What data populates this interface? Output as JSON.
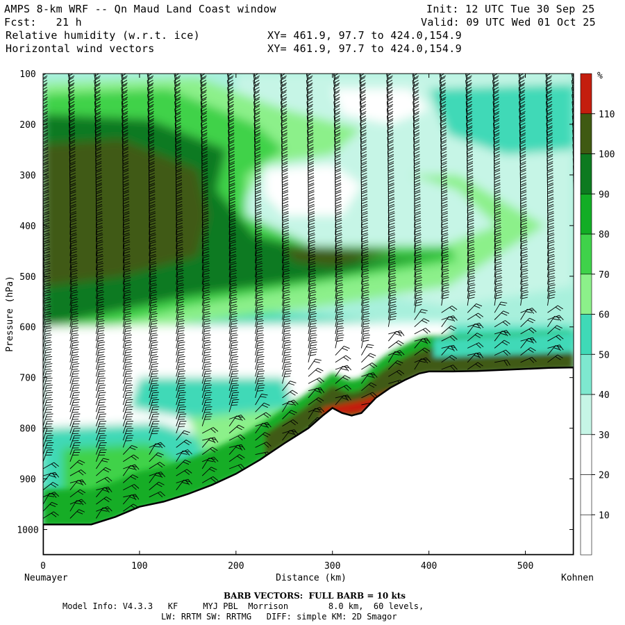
{
  "header": {
    "model_title": "AMPS 8-km WRF -- Qn Maud Land Coast window",
    "init": "Init: 12 UTC Tue 30 Sep 25",
    "forecast": "Fcst:   21 h",
    "valid": "Valid: 09 UTC Wed 01 Oct 25",
    "field1": "Relative humidity (w.r.t. ice)",
    "field1_xy": "XY= 461.9, 97.7 to 424.0,154.9",
    "field2": "Horizontal wind vectors",
    "field2_xy": "XY= 461.9, 97.7 to 424.0,154.9"
  },
  "footer": {
    "barb_note": "BARB VECTORS:  FULL BARB = 10 kts",
    "model_info_1": "Model Info: V4.3.3   KF     MYJ PBL  Morrison        8.0 km,  60 levels,",
    "model_info_2": "LW: RRTM SW: RRTMG   DIFF: simple KM: 2D Smagor"
  },
  "colors": {
    "bands": [
      "#ffffff",
      "#ffffff",
      "#ffffff",
      "#c6f5e6",
      "#7ee8cf",
      "#3fd9b7",
      "#8cf08a",
      "#3fd24a",
      "#12ad25",
      "#0d7a20",
      "#3f5a12",
      "#c41e0e"
    ],
    "terrain_fill": "#ffffff",
    "barb": "#000000"
  },
  "chart_data": {
    "type": "heatmap",
    "title": "Relative humidity (w.r.t. ice)",
    "xlabel": "Distance (km)",
    "ylabel": "Pressure (hPa)",
    "x_range": [
      0,
      550
    ],
    "y_range": [
      100,
      1050
    ],
    "y_axis_inverted": true,
    "x_ticks": [
      "0",
      "100",
      "200",
      "300",
      "400",
      "500"
    ],
    "y_ticks": [
      "100",
      "200",
      "300",
      "400",
      "500",
      "600",
      "700",
      "800",
      "900",
      "1000"
    ],
    "x_endpoints": {
      "left": "Neumayer",
      "right": "Kohnen"
    },
    "colorbar": {
      "unit": "%",
      "labels": [
        "10",
        "20",
        "30",
        "40",
        "50",
        "60",
        "70",
        "80",
        "90",
        "100",
        "110"
      ],
      "levels": [
        0,
        10,
        20,
        30,
        40,
        50,
        60,
        70,
        80,
        90,
        100,
        110,
        120
      ]
    },
    "terrain_surface": {
      "x": [
        0,
        50,
        75,
        100,
        125,
        150,
        175,
        200,
        225,
        250,
        275,
        290,
        300,
        310,
        320,
        330,
        345,
        360,
        375,
        390,
        400,
        425,
        450,
        475,
        500,
        525,
        550
      ],
      "p": [
        990,
        990,
        975,
        955,
        945,
        930,
        912,
        890,
        862,
        830,
        800,
        775,
        760,
        770,
        775,
        770,
        740,
        720,
        705,
        692,
        688,
        688,
        687,
        685,
        683,
        681,
        680
      ]
    },
    "regions": [
      {
        "level": "40-50",
        "x": [
          0,
          550
        ],
        "p": [
          100,
          1050
        ],
        "note": "background above terrain"
      },
      {
        "level": "30-40",
        "x": [
          200,
          550
        ],
        "p": [
          100,
          520
        ],
        "note": "upper troposphere east"
      },
      {
        "level": "60-70",
        "x": [
          0,
          240
        ],
        "p": [
          130,
          620
        ]
      },
      {
        "level": "90-100",
        "x": [
          0,
          200
        ],
        "p": [
          200,
          650
        ]
      },
      {
        "level": "100-110",
        "x": [
          0,
          180
        ],
        "p": [
          260,
          580
        ]
      },
      {
        "level": "20-30",
        "x": [
          0,
          420
        ],
        "p": [
          600,
          820
        ],
        "note": "dry layer"
      },
      {
        "level": "<20",
        "x": [
          230,
          310
        ],
        "p": [
          300,
          360
        ],
        "note": "dry pocket"
      },
      {
        "level": "80-110",
        "x": [
          280,
          550
        ],
        "p": [
          640,
          700
        ],
        "note": "moist layer above plateau"
      },
      {
        "level": ">110",
        "x": [
          285,
          370
        ],
        "p": [
          730,
          770
        ],
        "note": "supersaturation"
      }
    ],
    "wind_barbs": {
      "columns_x": [
        0,
        28,
        55,
        83,
        110,
        138,
        165,
        193,
        220,
        248,
        275,
        303,
        330,
        358,
        385,
        413,
        440,
        468,
        495,
        523,
        550
      ],
      "direction": "predominantly easterly (barbs pointing from east)",
      "full_barb_kts": 10
    },
    "grid": false
  }
}
